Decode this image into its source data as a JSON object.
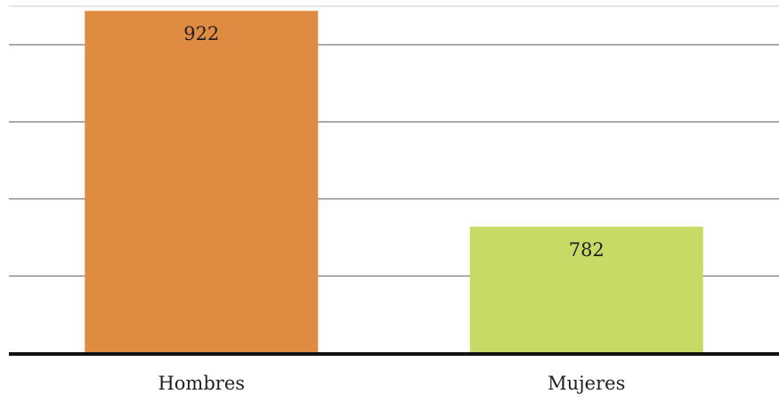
{
  "chart_data": {
    "type": "bar",
    "categories": [
      "Hombres",
      "Mujeres"
    ],
    "values": [
      922,
      782
    ],
    "data_labels": [
      "922",
      "782"
    ],
    "colors": [
      "#df8b42",
      "#c7da66"
    ],
    "ylim": [
      700,
      925
    ],
    "gridlines": [
      750,
      800,
      850,
      900
    ],
    "grid": true,
    "title": "",
    "xlabel": "",
    "ylabel": ""
  },
  "style": {
    "grid_color": "#8c8c8c",
    "axis_color": "#111111",
    "top_rule_color": "#e6e6e6"
  }
}
